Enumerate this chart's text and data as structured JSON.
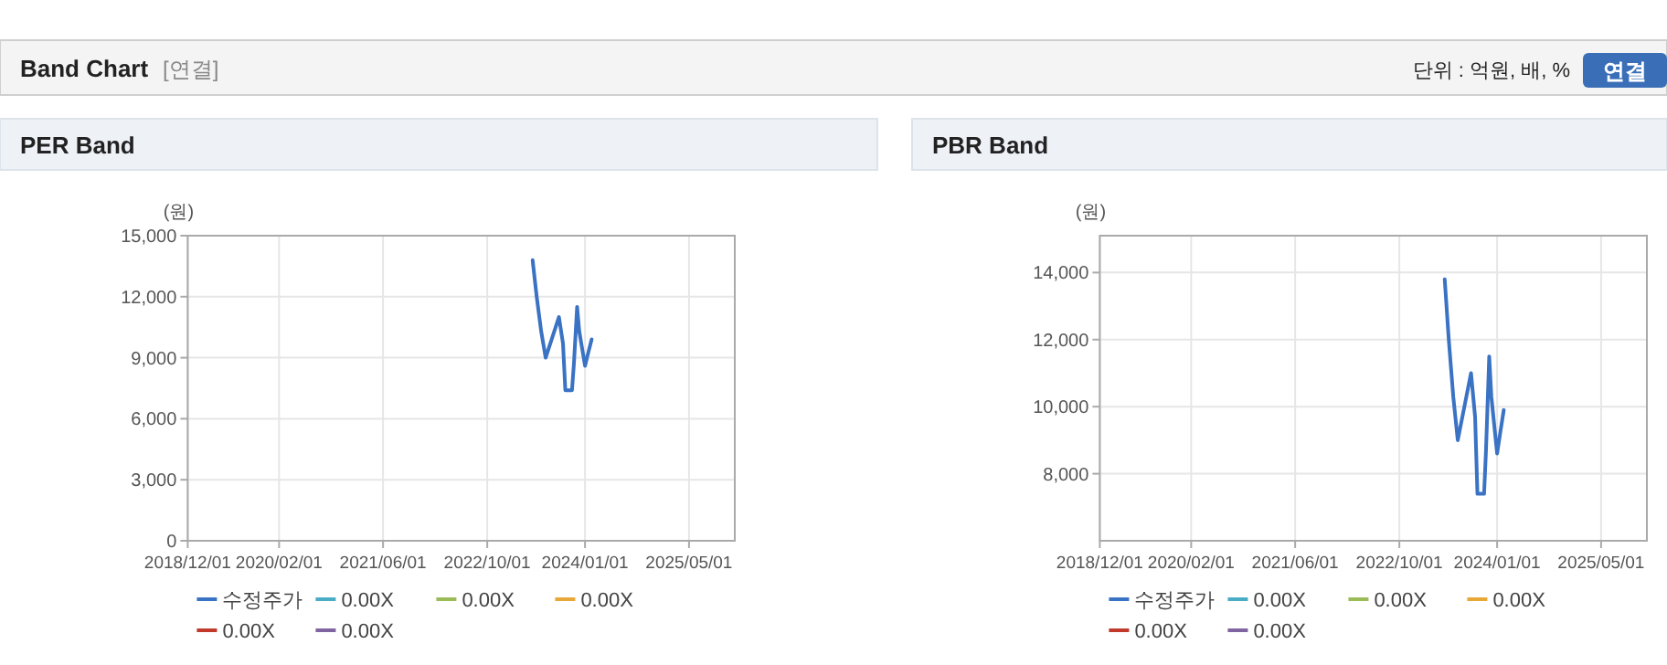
{
  "chart_data": [
    {
      "type": "other",
      "title": "Band Chart",
      "annotations": [
        "[연결]",
        "단위 : 억원, 배, %",
        "연결"
      ]
    },
    {
      "type": "line",
      "title": "PER Band",
      "ylabel": "(원)",
      "x": [
        "2023-05-01",
        "2023-05-20",
        "2023-06-10",
        "2023-07-01",
        "2023-09-01",
        "2023-09-20",
        "2023-10-01",
        "2023-11-01",
        "2023-11-10",
        "2023-11-25",
        "2023-12-05",
        "2024-01-01",
        "2024-01-15",
        "2024-02-01"
      ],
      "series": [
        {
          "name": "수정주가",
          "color": "#3a72c4",
          "values": [
            13800,
            12000,
            10300,
            9000,
            11000,
            9700,
            7400,
            7400,
            8700,
            11500,
            10300,
            8600,
            9200,
            9900
          ]
        },
        {
          "name": "0.00X",
          "color": "#4bacc6",
          "values": [
            null,
            null,
            null,
            null,
            null,
            null,
            null,
            null,
            null,
            null,
            null,
            null,
            null,
            null
          ]
        },
        {
          "name": "0.00X",
          "color": "#9bbb59",
          "values": [
            null,
            null,
            null,
            null,
            null,
            null,
            null,
            null,
            null,
            null,
            null,
            null,
            null,
            null
          ]
        },
        {
          "name": "0.00X",
          "color": "#e8a838",
          "values": [
            null,
            null,
            null,
            null,
            null,
            null,
            null,
            null,
            null,
            null,
            null,
            null,
            null,
            null
          ]
        },
        {
          "name": "0.00X",
          "color": "#c0392b",
          "values": [
            null,
            null,
            null,
            null,
            null,
            null,
            null,
            null,
            null,
            null,
            null,
            null,
            null,
            null
          ]
        },
        {
          "name": "0.00X",
          "color": "#8064a2",
          "values": [
            null,
            null,
            null,
            null,
            null,
            null,
            null,
            null,
            null,
            null,
            null,
            null,
            null,
            null
          ]
        }
      ],
      "xlim": [
        "2018-12-01",
        "2025-12-01"
      ],
      "xticks": [
        {
          "value": "2018-12-01",
          "label": "2018/12/01"
        },
        {
          "value": "2020-02-01",
          "label": "2020/02/01"
        },
        {
          "value": "2021-06-01",
          "label": "2021/06/01"
        },
        {
          "value": "2022-10-01",
          "label": "2022/10/01"
        },
        {
          "value": "2024-01-01",
          "label": "2024/01/01"
        },
        {
          "value": "2025-05-01",
          "label": "2025/05/01"
        }
      ],
      "ylim": [
        0,
        15000
      ],
      "yticks": [
        {
          "value": 0,
          "label": "0"
        },
        {
          "value": 3000,
          "label": "3,000"
        },
        {
          "value": 6000,
          "label": "6,000"
        },
        {
          "value": 9000,
          "label": "9,000"
        },
        {
          "value": 12000,
          "label": "12,000"
        },
        {
          "value": 15000,
          "label": "15,000"
        }
      ],
      "grid": true,
      "legend": "bottom",
      "marker": "none",
      "line_style": "solid"
    },
    {
      "type": "line",
      "title": "PBR Band",
      "ylabel": "(원)",
      "x": [
        "2023-05-01",
        "2023-05-20",
        "2023-06-10",
        "2023-07-01",
        "2023-09-01",
        "2023-09-20",
        "2023-10-01",
        "2023-11-01",
        "2023-11-10",
        "2023-11-25",
        "2023-12-05",
        "2024-01-01",
        "2024-01-15",
        "2024-02-01"
      ],
      "series": [
        {
          "name": "수정주가",
          "color": "#3a72c4",
          "values": [
            13800,
            12000,
            10300,
            9000,
            11000,
            9700,
            7400,
            7400,
            8700,
            11500,
            10300,
            8600,
            9200,
            9900
          ]
        },
        {
          "name": "0.00X",
          "color": "#4bacc6",
          "values": [
            null,
            null,
            null,
            null,
            null,
            null,
            null,
            null,
            null,
            null,
            null,
            null,
            null,
            null
          ]
        },
        {
          "name": "0.00X",
          "color": "#9bbb59",
          "values": [
            null,
            null,
            null,
            null,
            null,
            null,
            null,
            null,
            null,
            null,
            null,
            null,
            null,
            null
          ]
        },
        {
          "name": "0.00X",
          "color": "#e8a838",
          "values": [
            null,
            null,
            null,
            null,
            null,
            null,
            null,
            null,
            null,
            null,
            null,
            null,
            null,
            null
          ]
        },
        {
          "name": "0.00X",
          "color": "#c0392b",
          "values": [
            null,
            null,
            null,
            null,
            null,
            null,
            null,
            null,
            null,
            null,
            null,
            null,
            null,
            null
          ]
        },
        {
          "name": "0.00X",
          "color": "#8064a2",
          "values": [
            null,
            null,
            null,
            null,
            null,
            null,
            null,
            null,
            null,
            null,
            null,
            null,
            null,
            null
          ]
        }
      ],
      "xlim": [
        "2018-12-01",
        "2025-12-01"
      ],
      "xticks": [
        {
          "value": "2018-12-01",
          "label": "2018/12/01"
        },
        {
          "value": "2020-02-01",
          "label": "2020/02/01"
        },
        {
          "value": "2021-06-01",
          "label": "2021/06/01"
        },
        {
          "value": "2022-10-01",
          "label": "2022/10/01"
        },
        {
          "value": "2024-01-01",
          "label": "2024/01/01"
        },
        {
          "value": "2025-05-01",
          "label": "2025/05/01"
        }
      ],
      "ylim": [
        6000,
        15100
      ],
      "yticks": [
        {
          "value": 8000,
          "label": "8,000"
        },
        {
          "value": 10000,
          "label": "10,000"
        },
        {
          "value": 12000,
          "label": "12,000"
        },
        {
          "value": 14000,
          "label": "14,000"
        }
      ],
      "grid": true,
      "legend": "bottom",
      "marker": "none",
      "line_style": "solid"
    }
  ]
}
